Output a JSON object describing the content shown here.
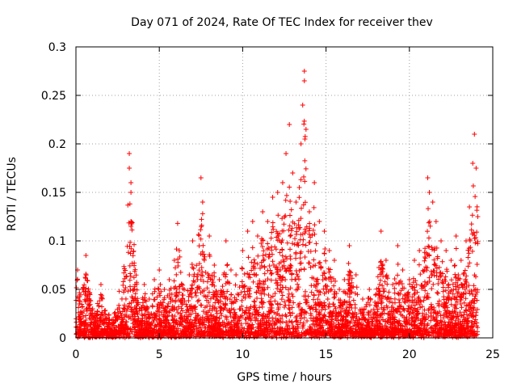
{
  "chart_data": {
    "type": "scatter",
    "title": "Day 071 of 2024, Rate Of TEC Index for receiver thev",
    "xlabel": "GPS time / hours",
    "ylabel": "ROTI / TECUs",
    "xlim": [
      0,
      25
    ],
    "ylim": [
      0,
      0.3
    ],
    "xticks": [
      0,
      5,
      10,
      15,
      20,
      25
    ],
    "xtick_labels": [
      "0",
      "5",
      "10",
      "15",
      "20",
      "25"
    ],
    "yticks": [
      0,
      0.05,
      0.1,
      0.15,
      0.2,
      0.25,
      0.3
    ],
    "ytick_labels": [
      "0",
      "0.05",
      "0.1",
      "0.15",
      "0.2",
      "0.25",
      "0.3"
    ],
    "grid": true,
    "marker": "+",
    "series_color": "#ff0000",
    "series": [
      {
        "name": "ROTI",
        "x": [
          0.1,
          0.2,
          0.3,
          0.4,
          0.5,
          0.6,
          0.8,
          1.0,
          1.2,
          1.5,
          1.8,
          2.0,
          2.3,
          2.6,
          2.9,
          3.2,
          3.2,
          3.3,
          3.3,
          3.3,
          3.3,
          3.5,
          3.8,
          4.1,
          4.4,
          4.7,
          5.0,
          5.3,
          5.6,
          5.9,
          6.1,
          6.2,
          6.5,
          6.8,
          7.0,
          7.3,
          7.5,
          7.6,
          7.6,
          7.7,
          8.0,
          8.3,
          8.6,
          9.0,
          9.3,
          9.6,
          10.0,
          10.3,
          10.6,
          10.9,
          11.2,
          11.5,
          11.8,
          12.1,
          12.4,
          12.6,
          12.8,
          13.0,
          13.2,
          13.4,
          13.5,
          13.6,
          13.7,
          13.7,
          13.8,
          14.0,
          14.3,
          14.6,
          14.9,
          15.2,
          15.5,
          15.8,
          16.1,
          16.4,
          16.8,
          17.2,
          17.6,
          18.0,
          18.3,
          18.6,
          19.0,
          19.3,
          19.6,
          20.0,
          20.3,
          20.6,
          20.9,
          21.1,
          21.2,
          21.4,
          21.6,
          21.9,
          22.2,
          22.5,
          22.8,
          23.1,
          23.4,
          23.6,
          23.8,
          23.9,
          24.0,
          24.1
        ],
        "y": [
          0.07,
          0.035,
          0.02,
          0.05,
          0.012,
          0.085,
          0.04,
          0.03,
          0.018,
          0.055,
          0.02,
          0.015,
          0.025,
          0.048,
          0.03,
          0.19,
          0.175,
          0.16,
          0.15,
          0.12,
          0.115,
          0.05,
          0.03,
          0.055,
          0.04,
          0.06,
          0.07,
          0.05,
          0.06,
          0.08,
          0.118,
          0.09,
          0.05,
          0.065,
          0.1,
          0.06,
          0.165,
          0.14,
          0.128,
          0.08,
          0.105,
          0.075,
          0.06,
          0.1,
          0.07,
          0.065,
          0.09,
          0.11,
          0.12,
          0.105,
          0.13,
          0.12,
          0.145,
          0.15,
          0.16,
          0.19,
          0.22,
          0.17,
          0.14,
          0.155,
          0.2,
          0.24,
          0.275,
          0.265,
          0.215,
          0.13,
          0.16,
          0.12,
          0.11,
          0.09,
          0.08,
          0.05,
          0.06,
          0.095,
          0.065,
          0.04,
          0.05,
          0.045,
          0.11,
          0.08,
          0.055,
          0.095,
          0.07,
          0.06,
          0.08,
          0.09,
          0.07,
          0.165,
          0.15,
          0.14,
          0.12,
          0.1,
          0.09,
          0.08,
          0.105,
          0.08,
          0.1,
          0.135,
          0.18,
          0.21,
          0.175,
          0.125
        ]
      }
    ]
  }
}
